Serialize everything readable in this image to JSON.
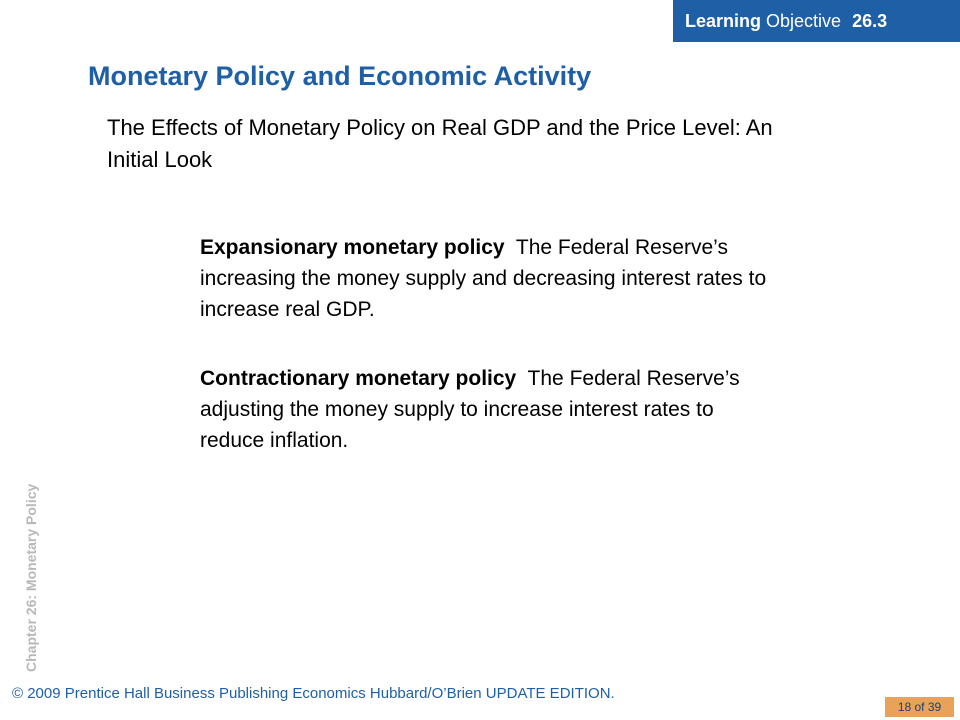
{
  "learning_objective": {
    "prefix": "Learning",
    "label": "Objective",
    "number": "26.3"
  },
  "title": "Monetary Policy and Economic Activity",
  "subtitle": "The Effects of Monetary Policy on Real GDP and the Price Level:  An Initial Look",
  "definitions": [
    {
      "term": "Expansionary monetary policy",
      "text": "The Federal Reserve’s increasing the money supply and decreasing interest rates to increase real GDP."
    },
    {
      "term": "Contractionary monetary policy",
      "text": "The Federal Reserve’s adjusting the money supply to increase interest rates to reduce inflation."
    }
  ],
  "side_label": "Chapter 26:  Monetary Policy",
  "footer": "© 2009 Prentice Hall Business Publishing Economics  Hubbard/O’Brien UPDATE EDITION.",
  "page_indicator": "18 of 39",
  "colors": {
    "accent_blue": "#1f5fa6",
    "badge_orange": "#e8a25a",
    "side_label_gray": "#b8b8b8"
  }
}
